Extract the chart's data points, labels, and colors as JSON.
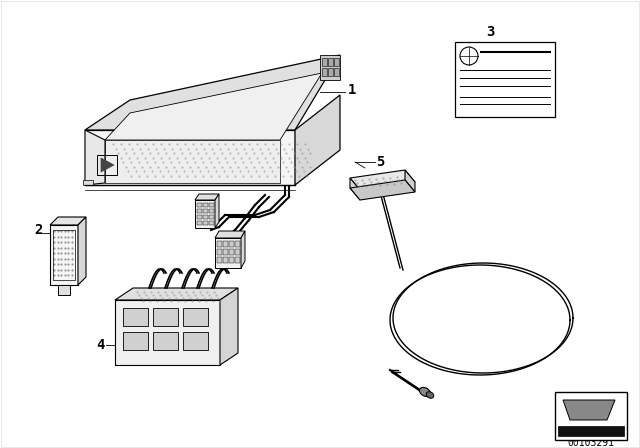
{
  "bg_color": "#ffffff",
  "line_color": "#000000",
  "diagram_number": "00103291",
  "figsize": [
    6.4,
    4.48
  ],
  "dpi": 100,
  "dot_color": "#bbbbbb"
}
